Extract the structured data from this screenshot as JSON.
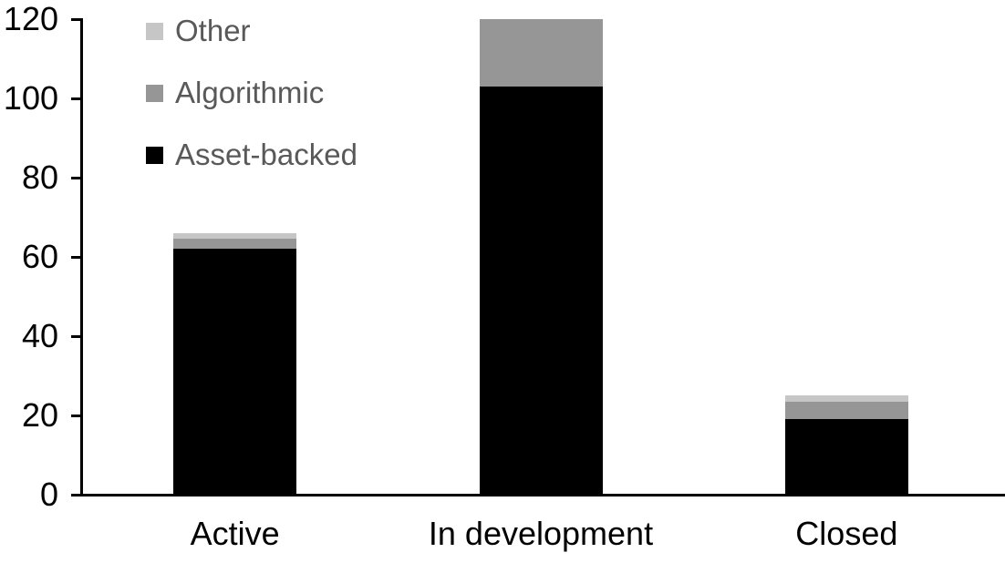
{
  "chart_data": {
    "type": "bar",
    "stacked": true,
    "title": "",
    "categories": [
      "Active",
      "In development",
      "Closed"
    ],
    "series": [
      {
        "name": "Asset-backed",
        "color": "#000000",
        "values": [
          62,
          103,
          19
        ]
      },
      {
        "name": "Algorithmic",
        "color": "#969696",
        "values": [
          2.5,
          17,
          4.5
        ]
      },
      {
        "name": "Other",
        "color": "#C6C6C6",
        "values": [
          1.5,
          0,
          1.5
        ]
      }
    ],
    "totals": [
      66,
      120,
      25
    ],
    "xlabel": "",
    "ylabel": "",
    "ylim": [
      0,
      120
    ],
    "yticks": [
      0,
      20,
      40,
      60,
      80,
      100,
      120
    ],
    "ytick_labels": [
      "0",
      "20",
      "40",
      "60",
      "80",
      "100",
      "120"
    ],
    "grid": false,
    "legend": {
      "position": "top-left",
      "entries": [
        "Other",
        "Algorithmic",
        "Asset-backed"
      ]
    },
    "colors": {
      "background": "#ffffff",
      "axis": "#000000",
      "tick_label": "#000000",
      "legend_text": "#595959"
    }
  }
}
